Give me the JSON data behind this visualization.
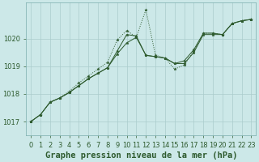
{
  "title": "Graphe pression niveau de la mer (hPa)",
  "background_color": "#cce8e8",
  "grid_color": "#aacccc",
  "line_color": "#2d5a2d",
  "x_labels": [
    "0",
    "1",
    "2",
    "3",
    "4",
    "5",
    "6",
    "7",
    "8",
    "9",
    "10",
    "11",
    "12",
    "13",
    "14",
    "15",
    "16",
    "17",
    "18",
    "19",
    "20",
    "21",
    "22",
    "23"
  ],
  "y_ticks": [
    1017,
    1018,
    1019,
    1020
  ],
  "ylim": [
    1016.5,
    1021.3
  ],
  "xlim": [
    -0.5,
    23.5
  ],
  "series_solid_1": [
    1017.0,
    1017.25,
    1017.7,
    1017.85,
    1018.05,
    1018.3,
    1018.55,
    1018.75,
    1018.95,
    1019.45,
    1019.85,
    1020.05,
    1019.4,
    1019.35,
    1019.3,
    1019.1,
    1019.1,
    1019.5,
    1020.15,
    1020.15,
    1020.15,
    1020.55,
    1020.65,
    1020.7
  ],
  "series_solid_2": [
    1017.0,
    1017.25,
    1017.7,
    1017.85,
    1018.05,
    1018.3,
    1018.55,
    1018.75,
    1018.95,
    1019.55,
    1020.15,
    1020.1,
    1019.4,
    1019.35,
    1019.3,
    1019.1,
    1019.2,
    1019.6,
    1020.2,
    1020.2,
    1020.15,
    1020.55,
    1020.65,
    1020.7
  ],
  "series_dotted": [
    1017.0,
    1017.25,
    1017.7,
    1017.85,
    1018.1,
    1018.4,
    1018.65,
    1018.9,
    1019.15,
    1019.95,
    1020.3,
    1020.05,
    1021.05,
    1019.4,
    1019.3,
    1018.9,
    1019.05,
    1019.55,
    1020.2,
    1020.2,
    1020.15,
    1020.55,
    1020.65,
    1020.7
  ],
  "title_fontsize": 7.5,
  "tick_fontsize": 6,
  "xlabel_fontsize": 6
}
